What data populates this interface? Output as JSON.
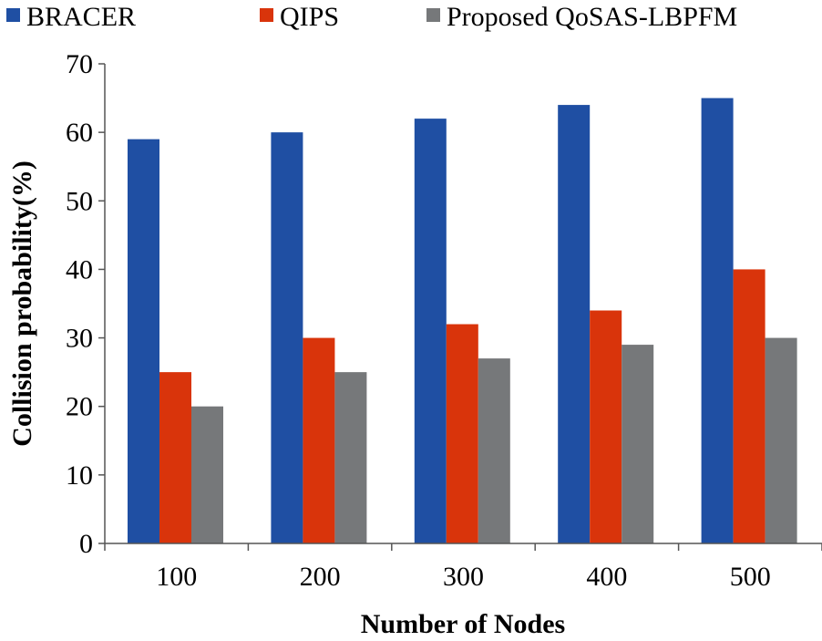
{
  "chart_data": {
    "type": "bar",
    "title": "",
    "xlabel": "Number of Nodes",
    "ylabel": "Collision probability(%)",
    "categories": [
      "100",
      "200",
      "300",
      "400",
      "500"
    ],
    "series": [
      {
        "name": "BRACER",
        "color": "#1f4fa3",
        "values": [
          59,
          60,
          62,
          64,
          65
        ]
      },
      {
        "name": "QIPS",
        "color": "#d9340b",
        "values": [
          25,
          30,
          32,
          34,
          40
        ]
      },
      {
        "name": "Proposed QoSAS-LBPFM",
        "color": "#76787a",
        "values": [
          20,
          25,
          27,
          29,
          30
        ]
      }
    ],
    "ylim": [
      0,
      70
    ],
    "yticks": [
      0,
      10,
      20,
      30,
      40,
      50,
      60,
      70
    ],
    "grid": false,
    "legend_position": "top"
  }
}
